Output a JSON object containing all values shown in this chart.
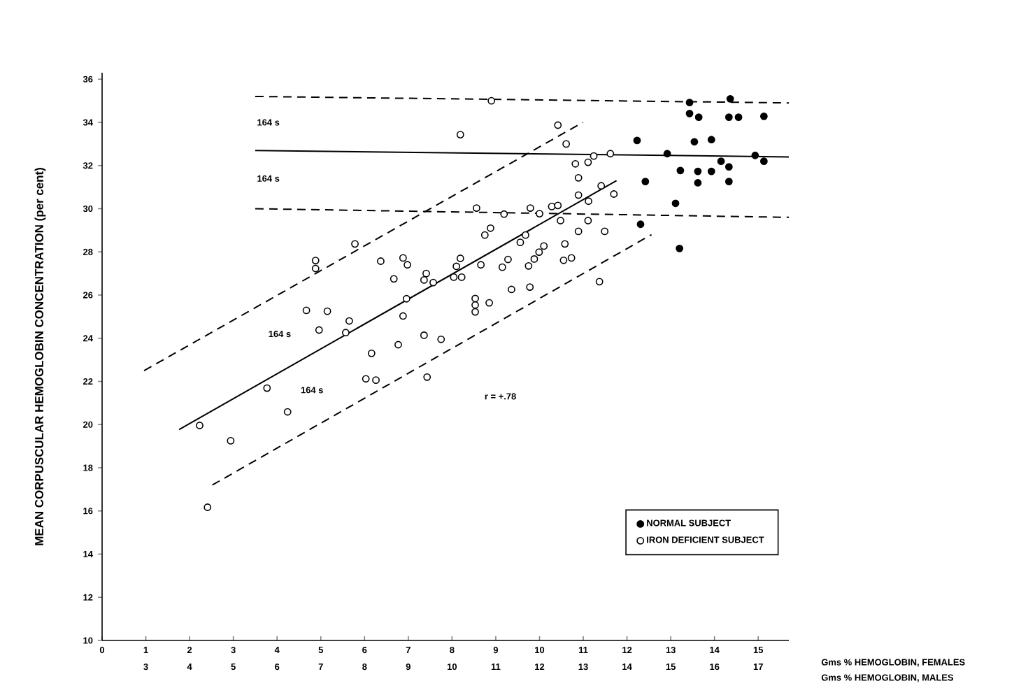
{
  "chart_data": {
    "type": "scatter",
    "ylabel": "MEAN CORPUSCULAR HEMOGLOBIN CONCENTRATION (per cent)",
    "xlabel": "Gms % HEMOGLOBIN, FEMALES",
    "x2label": "Gms % HEMOGLOBIN, MALES",
    "xlim": [
      0,
      15.7
    ],
    "ylim": [
      10,
      36.3
    ],
    "x2lim": [
      2,
      17.7
    ],
    "xticks": [
      0,
      1,
      2,
      3,
      4,
      5,
      6,
      7,
      8,
      9,
      10,
      11,
      12,
      13,
      14,
      15
    ],
    "x2ticks": [
      3,
      4,
      5,
      6,
      7,
      8,
      9,
      10,
      11,
      12,
      13,
      14,
      15,
      16,
      17
    ],
    "yticks": [
      10,
      12,
      14,
      16,
      18,
      20,
      22,
      24,
      26,
      28,
      30,
      32,
      34,
      36
    ],
    "grid": false,
    "legend": "bottom right",
    "series": [
      {
        "name": "NORMAL SUBJECT",
        "color": "#000000",
        "marker": "circle",
        "x": [
          13.43,
          14.36,
          13.43,
          13.64,
          14.33,
          14.55,
          15.13,
          12.23,
          13.54,
          13.93,
          12.92,
          14.93,
          15.13,
          14.15,
          14.33,
          13.22,
          13.62,
          13.93,
          12.42,
          13.62,
          14.33,
          13.11,
          12.31,
          13.2
        ],
        "values": [
          34.92,
          35.09,
          34.41,
          34.24,
          34.24,
          34.24,
          34.28,
          33.16,
          33.1,
          33.2,
          32.55,
          32.47,
          32.2,
          32.2,
          31.94,
          31.77,
          31.73,
          31.73,
          31.26,
          31.2,
          31.26,
          30.25,
          29.28,
          28.16
        ]
      },
      {
        "name": "IRON DEFICIENT SUBJECT",
        "color": "#ffffff",
        "marker": "circle",
        "x": [
          8.9,
          8.19,
          8.56,
          9.19,
          9.79,
          10.0,
          10.28,
          10.42,
          5.78,
          4.88,
          4.88,
          6.37,
          6.67,
          6.88,
          6.98,
          7.41,
          7.57,
          7.36,
          6.96,
          6.88,
          4.67,
          5.15,
          4.96,
          5.65,
          5.57,
          6.16,
          6.77,
          7.36,
          7.75,
          8.1,
          8.19,
          8.04,
          8.22,
          8.66,
          8.75,
          8.88,
          9.15,
          9.28,
          9.36,
          9.78,
          8.53,
          8.53,
          8.53,
          8.85,
          9.56,
          9.68,
          9.75,
          9.88,
          9.99,
          10.1,
          6.03,
          6.26,
          7.43,
          3.77,
          4.24,
          2.23,
          2.94,
          2.41,
          10.42,
          10.61,
          10.82,
          11.11,
          11.24,
          11.62,
          10.89,
          10.89,
          11.41,
          11.7,
          11.12,
          10.48,
          11.11,
          10.89,
          11.49,
          10.58,
          10.55,
          10.73,
          11.37
        ],
        "values": [
          35.0,
          33.43,
          30.03,
          29.75,
          30.03,
          29.77,
          30.1,
          30.15,
          28.37,
          27.6,
          27.23,
          27.57,
          26.75,
          27.72,
          27.4,
          27.0,
          26.58,
          26.7,
          25.83,
          25.03,
          25.29,
          25.25,
          24.38,
          24.8,
          24.26,
          23.3,
          23.7,
          24.14,
          23.95,
          27.33,
          27.7,
          26.83,
          26.83,
          27.4,
          28.78,
          29.1,
          27.29,
          27.65,
          26.26,
          26.37,
          25.84,
          25.54,
          25.22,
          25.64,
          28.44,
          28.78,
          27.35,
          27.67,
          27.99,
          28.27,
          22.12,
          22.06,
          22.2,
          21.69,
          20.59,
          19.96,
          19.25,
          16.17,
          33.87,
          33.0,
          32.08,
          32.15,
          32.44,
          32.55,
          31.43,
          30.63,
          31.06,
          30.68,
          30.35,
          29.45,
          29.45,
          28.95,
          28.95,
          28.37,
          27.61,
          27.72,
          26.62
        ]
      },
      {
        "type": "line",
        "line_style": "solid",
        "color": "#000000",
        "x": [
          3.5,
          15.7
        ],
        "values": [
          32.7,
          32.4
        ]
      },
      {
        "type": "line",
        "line_style": "dashed",
        "color": "#000000",
        "x": [
          3.5,
          15.7
        ],
        "values": [
          35.2,
          34.9
        ]
      },
      {
        "type": "line",
        "line_style": "dashed",
        "color": "#000000",
        "x": [
          3.5,
          15.7
        ],
        "values": [
          30.0,
          29.6
        ]
      },
      {
        "type": "line",
        "line_style": "solid",
        "color": "#000000",
        "x": [
          1.76,
          11.76
        ],
        "values": [
          19.77,
          31.3
        ]
      },
      {
        "type": "line",
        "line_style": "dashed",
        "color": "#000000",
        "x": [
          0.96,
          10.99
        ],
        "values": [
          22.5,
          34.0
        ]
      },
      {
        "type": "line",
        "line_style": "dashed",
        "color": "#000000",
        "x": [
          2.52,
          12.56
        ],
        "values": [
          17.2,
          28.8
        ]
      }
    ],
    "annotations": [
      {
        "text": "164 s",
        "x": 3.8,
        "y": 34.0
      },
      {
        "text": "164 s",
        "x": 3.8,
        "y": 31.4
      },
      {
        "text": "164 s",
        "x": 4.06,
        "y": 24.2
      },
      {
        "text": "164 s",
        "x": 4.8,
        "y": 21.6
      },
      "r = +.78"
    ]
  }
}
